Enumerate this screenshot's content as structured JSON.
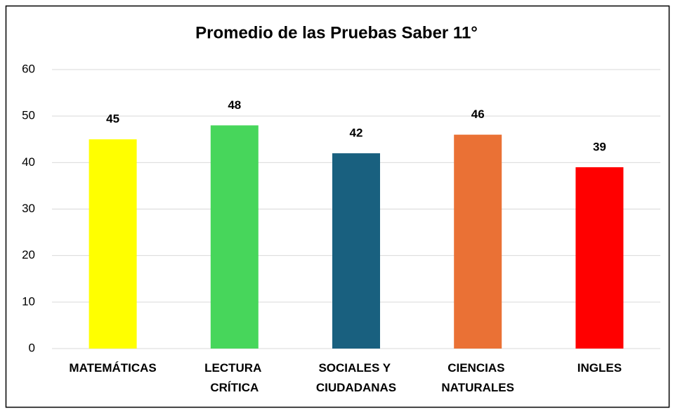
{
  "chart_data": {
    "type": "bar",
    "title": "Promedio de las Pruebas Saber 11°",
    "categories": [
      "MATEMÁTICAS",
      "LECTURA CRÍTICA",
      "SOCIALES Y CIUDADANAS",
      "CIENCIAS NATURALES",
      "INGLES"
    ],
    "values": [
      45,
      48,
      42,
      46,
      39
    ],
    "colors": [
      "#ffff00",
      "#47d65b",
      "#19607f",
      "#ea7135",
      "#ff0000"
    ],
    "ylim": [
      0,
      60
    ],
    "yticks": [
      0,
      10,
      20,
      30,
      40,
      50,
      60
    ],
    "grid": true
  }
}
